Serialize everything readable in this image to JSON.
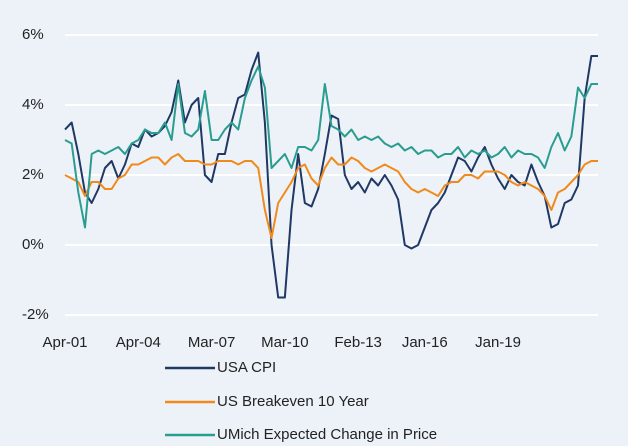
{
  "chart_data": {
    "type": "line",
    "categories": [
      "Apr-01",
      null,
      null,
      null,
      null,
      null,
      null,
      null,
      null,
      null,
      null,
      "Apr-04",
      null,
      null,
      null,
      null,
      null,
      null,
      null,
      null,
      null,
      null,
      "Mar-07",
      null,
      null,
      null,
      null,
      null,
      null,
      null,
      null,
      null,
      null,
      "Mar-10",
      null,
      null,
      null,
      null,
      null,
      null,
      null,
      null,
      null,
      null,
      "Feb-13",
      null,
      null,
      null,
      null,
      null,
      null,
      null,
      null,
      null,
      "Jan-16",
      null,
      null,
      null,
      null,
      null,
      null,
      null,
      null,
      null,
      null,
      "Jan-19",
      null,
      null,
      null,
      null,
      null,
      null,
      null,
      null,
      null,
      null,
      null,
      null,
      null,
      null,
      null
    ],
    "series": [
      {
        "name": "USA CPI",
        "color": "#1f3864",
        "values": [
          3.3,
          3.5,
          2.6,
          1.5,
          1.2,
          1.6,
          2.2,
          2.4,
          1.9,
          2.3,
          2.9,
          2.8,
          3.3,
          3.1,
          3.2,
          3.4,
          3.8,
          4.7,
          3.5,
          4.0,
          4.2,
          2.0,
          1.8,
          2.6,
          2.6,
          3.5,
          4.2,
          4.3,
          5.0,
          5.5,
          3.5,
          0.0,
          -1.5,
          -1.5,
          1.0,
          2.6,
          1.2,
          1.1,
          1.6,
          2.6,
          3.7,
          3.6,
          2.0,
          1.6,
          1.8,
          1.5,
          1.9,
          1.7,
          2.0,
          1.7,
          1.3,
          0.0,
          -0.1,
          0.0,
          0.5,
          1.0,
          1.2,
          1.5,
          2.0,
          2.5,
          2.4,
          2.1,
          2.5,
          2.8,
          2.3,
          1.9,
          1.6,
          2.0,
          1.8,
          1.7,
          2.3,
          1.8,
          1.4,
          0.5,
          0.6,
          1.2,
          1.3,
          1.7,
          4.2,
          5.4,
          5.4
        ]
      },
      {
        "name": "US Breakeven 10 Year",
        "color": "#f08a1c",
        "values": [
          2.0,
          1.9,
          1.8,
          1.4,
          1.8,
          1.8,
          1.6,
          1.6,
          1.9,
          2.0,
          2.3,
          2.3,
          2.4,
          2.5,
          2.5,
          2.3,
          2.5,
          2.6,
          2.4,
          2.4,
          2.4,
          2.3,
          2.3,
          2.4,
          2.4,
          2.4,
          2.3,
          2.4,
          2.4,
          2.2,
          1.0,
          0.2,
          1.2,
          1.5,
          1.8,
          2.2,
          2.3,
          1.9,
          1.7,
          2.2,
          2.5,
          2.3,
          2.3,
          2.5,
          2.4,
          2.2,
          2.1,
          2.2,
          2.3,
          2.2,
          2.1,
          1.8,
          1.6,
          1.5,
          1.6,
          1.5,
          1.4,
          1.7,
          1.8,
          1.8,
          2.0,
          2.0,
          1.9,
          2.1,
          2.1,
          2.1,
          2.0,
          1.8,
          1.7,
          1.8,
          1.7,
          1.6,
          1.4,
          1.0,
          1.5,
          1.6,
          1.8,
          2.0,
          2.3,
          2.4,
          2.4
        ]
      },
      {
        "name": "UMich Expected Change in Price",
        "color": "#2a9d8f",
        "values": [
          3.0,
          2.9,
          1.5,
          0.5,
          2.6,
          2.7,
          2.6,
          2.7,
          2.8,
          2.6,
          2.9,
          3.0,
          3.3,
          3.2,
          3.2,
          3.5,
          3.0,
          4.6,
          3.2,
          3.1,
          3.3,
          4.4,
          3.0,
          3.0,
          3.3,
          3.5,
          3.3,
          4.2,
          4.7,
          5.1,
          4.5,
          2.2,
          2.4,
          2.6,
          2.2,
          2.8,
          2.8,
          2.7,
          3.0,
          4.6,
          3.4,
          3.3,
          3.1,
          3.3,
          3.0,
          3.1,
          3.0,
          3.1,
          2.9,
          2.8,
          2.9,
          2.7,
          2.8,
          2.6,
          2.7,
          2.7,
          2.5,
          2.6,
          2.6,
          2.8,
          2.5,
          2.7,
          2.6,
          2.7,
          2.5,
          2.6,
          2.8,
          2.5,
          2.7,
          2.6,
          2.6,
          2.5,
          2.2,
          2.8,
          3.2,
          2.7,
          3.1,
          4.5,
          4.2,
          4.6,
          4.6
        ]
      }
    ],
    "ylim": [
      -2,
      6
    ],
    "yticks": [
      {
        "value": -2,
        "label": "-2%"
      },
      {
        "value": 0,
        "label": "0%"
      },
      {
        "value": 2,
        "label": "2%"
      },
      {
        "value": 4,
        "label": "4%"
      },
      {
        "value": 6,
        "label": "6%"
      }
    ],
    "grid": true,
    "legend": "bottom"
  }
}
